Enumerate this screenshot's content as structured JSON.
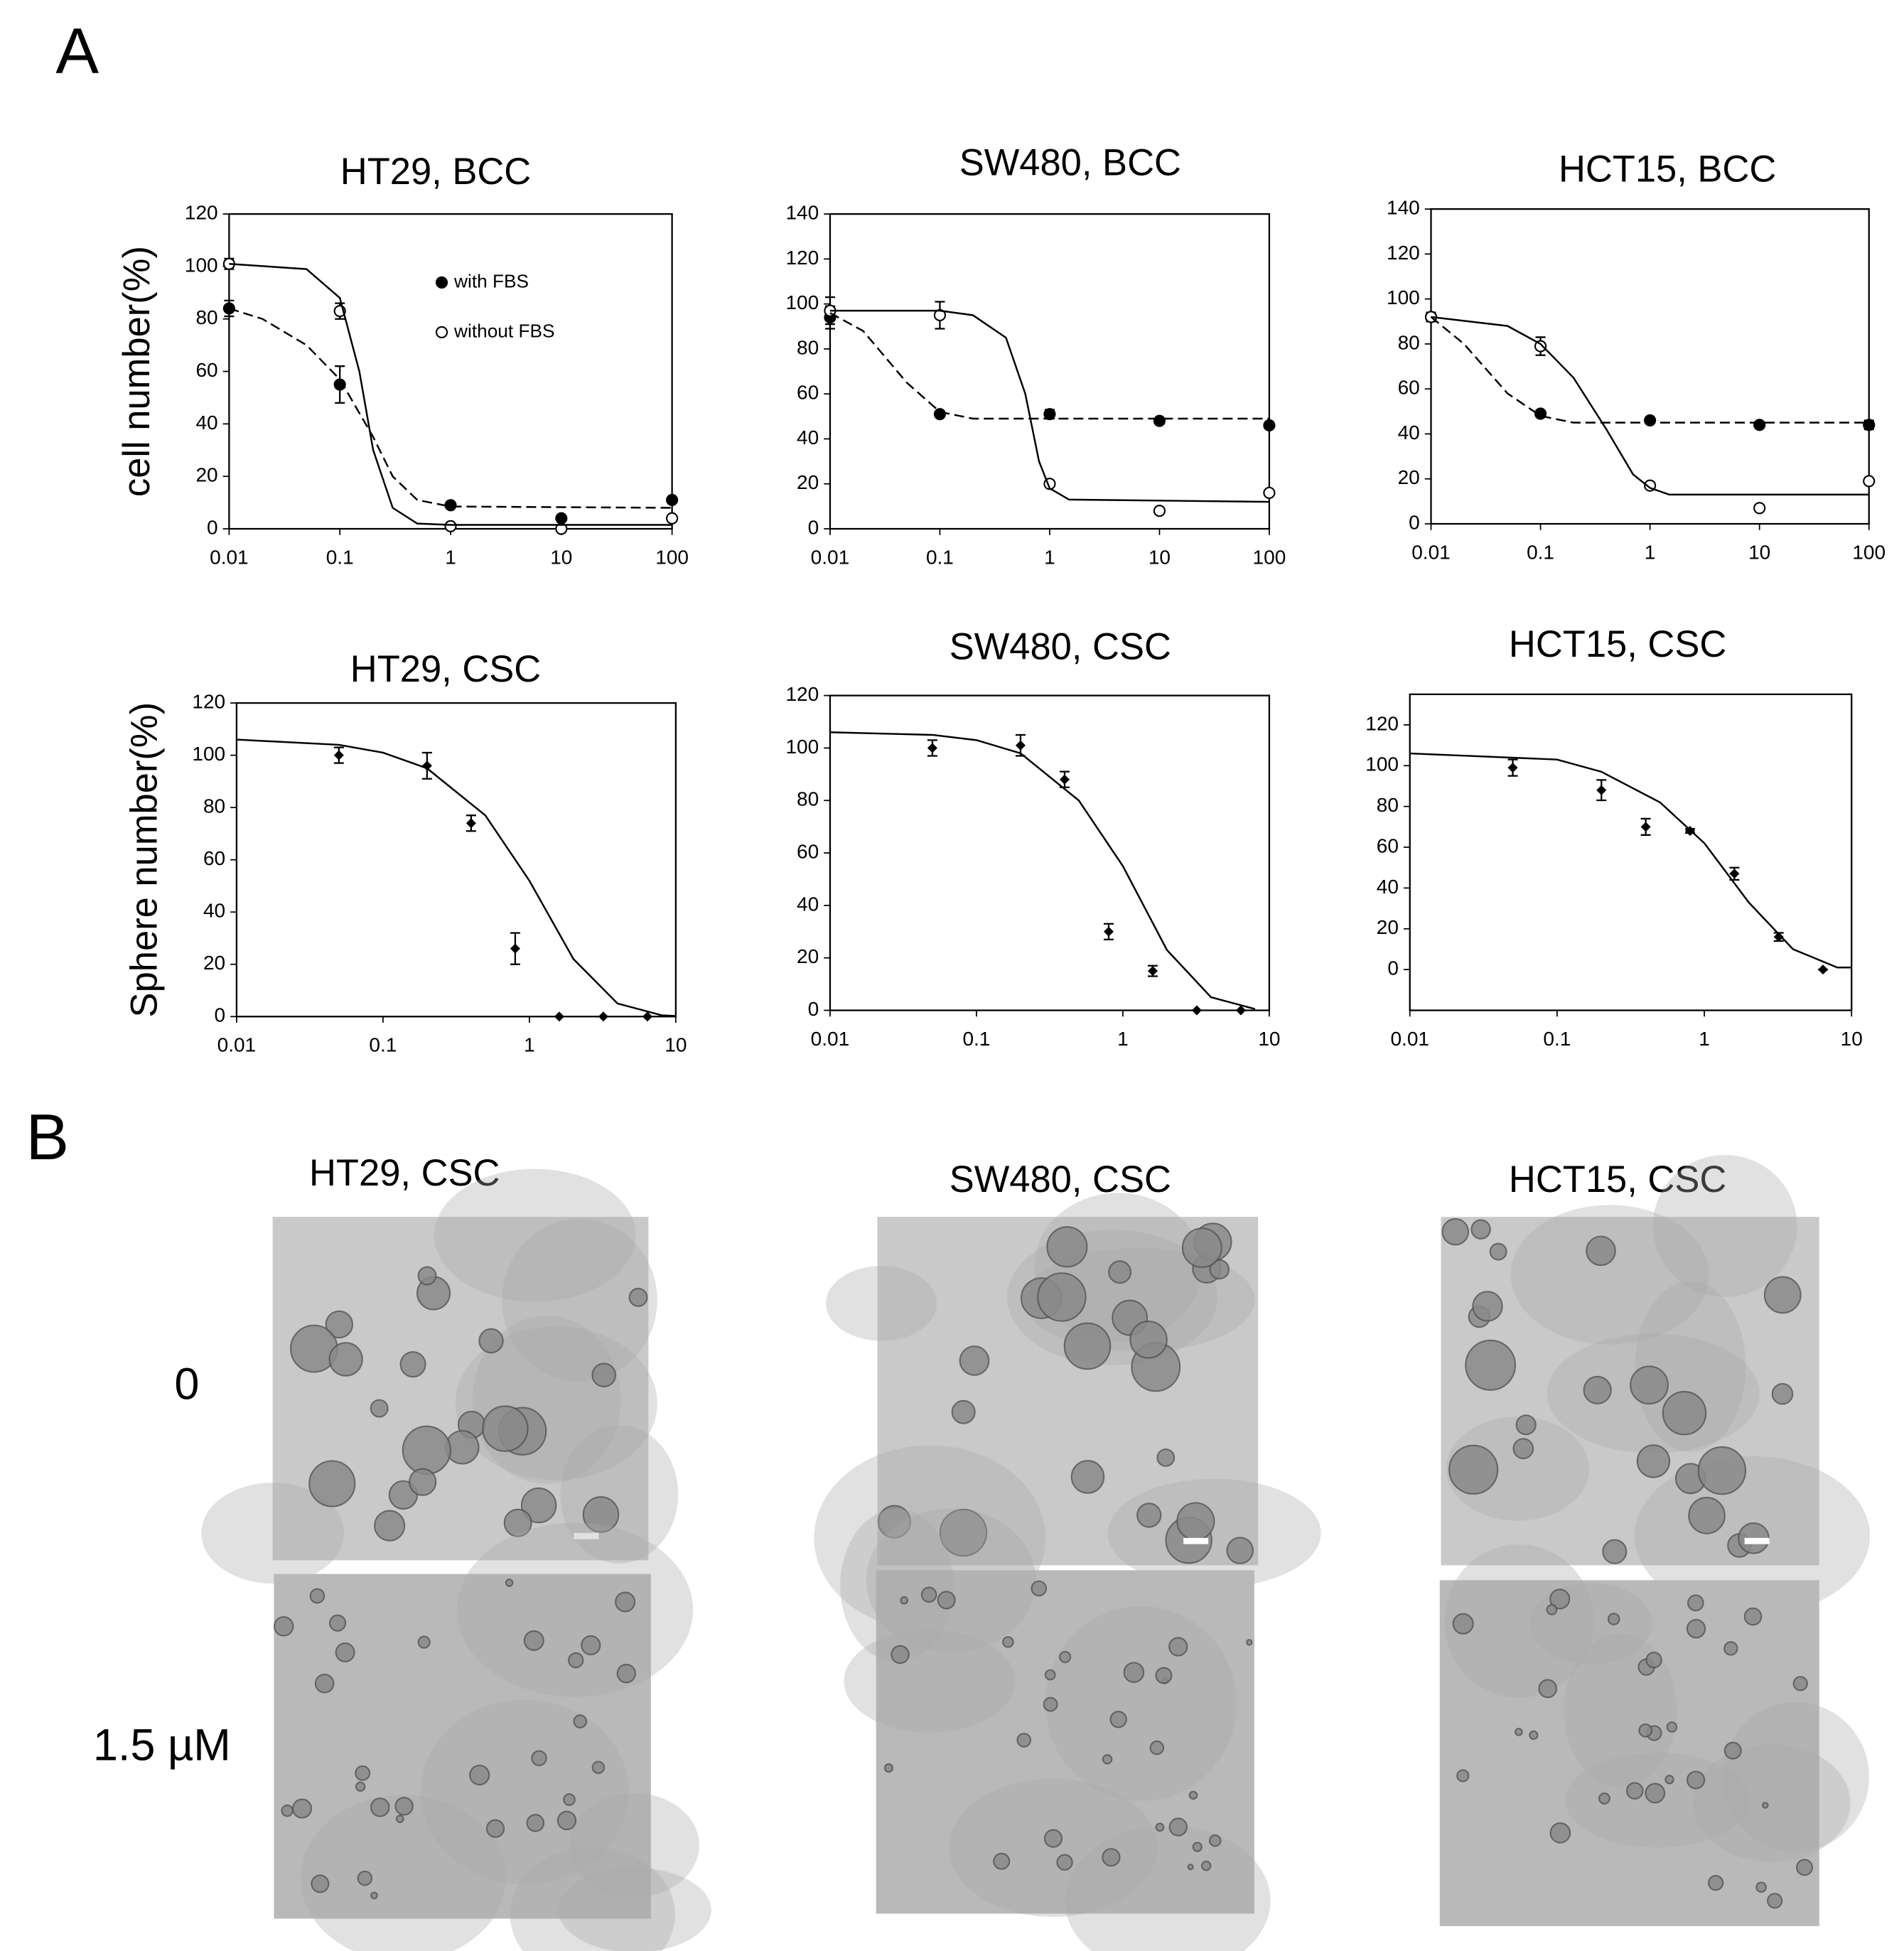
{
  "panel_labels": [
    "A",
    "B"
  ],
  "chart_data": [
    {
      "type": "scatter",
      "title": "HT29, BCC",
      "y_label": "cell number(%)",
      "xscale": "log",
      "xlim": [
        0.01,
        100
      ],
      "xticks": [
        0.01,
        0.1,
        1,
        10,
        100
      ],
      "ylim": [
        0,
        120
      ],
      "yticks": [
        0,
        20,
        40,
        60,
        80,
        100,
        120
      ],
      "legend": "upper right",
      "series": [
        {
          "name": "with FBS",
          "marker": "filled",
          "color": "#000000",
          "x": [
            0.01,
            0.1,
            1,
            10,
            100
          ],
          "values": [
            84,
            55,
            9,
            4,
            11
          ],
          "errors": [
            3,
            7,
            1,
            1,
            1
          ]
        },
        {
          "name": "without FBS",
          "marker": "open",
          "color": "#000000",
          "x": [
            0.01,
            0.1,
            1,
            10,
            100
          ],
          "values": [
            101,
            83,
            1,
            0,
            4
          ],
          "errors": [
            2,
            3,
            1,
            1,
            1
          ]
        },
        {
          "marker": "line",
          "dash": true,
          "color": "#000000",
          "x": [
            0.01,
            0.02,
            0.05,
            0.1,
            0.2,
            0.3,
            0.5,
            1,
            100
          ],
          "values": [
            84,
            80,
            70,
            57,
            35,
            20,
            11,
            8.5,
            8
          ]
        },
        {
          "marker": "line",
          "dash": false,
          "color": "#000000",
          "x": [
            0.01,
            0.05,
            0.1,
            0.15,
            0.2,
            0.3,
            0.5,
            1,
            100
          ],
          "values": [
            101,
            99,
            88,
            60,
            30,
            8,
            2,
            1.5,
            1.5
          ]
        }
      ]
    },
    {
      "type": "scatter",
      "title": "SW480, BCC",
      "xscale": "log",
      "xlim": [
        0.01,
        100
      ],
      "xticks": [
        0.01,
        0.1,
        1,
        10,
        100
      ],
      "ylim": [
        0,
        140
      ],
      "yticks": [
        0,
        20,
        40,
        60,
        80,
        100,
        120,
        140
      ],
      "series": [
        {
          "marker": "filled",
          "color": "#000000",
          "x": [
            0.01,
            0.1,
            1,
            10,
            100
          ],
          "values": [
            94,
            51,
            51,
            48,
            46
          ],
          "errors": [
            5,
            1,
            2,
            1,
            1
          ]
        },
        {
          "marker": "open",
          "color": "#000000",
          "x": [
            0.01,
            0.1,
            1,
            10,
            100
          ],
          "values": [
            97,
            95,
            20,
            8,
            16
          ],
          "errors": [
            6,
            6,
            1,
            1,
            1
          ]
        },
        {
          "marker": "line",
          "dash": true,
          "color": "#000000",
          "x": [
            0.01,
            0.02,
            0.05,
            0.1,
            0.2,
            1,
            100
          ],
          "values": [
            96,
            88,
            65,
            52,
            49,
            49,
            49
          ]
        },
        {
          "marker": "line",
          "dash": false,
          "color": "#000000",
          "x": [
            0.01,
            0.1,
            0.2,
            0.4,
            0.6,
            0.8,
            1,
            1.5,
            100
          ],
          "values": [
            97,
            97,
            95,
            85,
            60,
            30,
            18,
            13,
            12
          ]
        }
      ]
    },
    {
      "type": "scatter",
      "title": "HCT15, BCC",
      "xscale": "log",
      "xlim": [
        0.01,
        100
      ],
      "xticks": [
        0.01,
        0.1,
        1,
        10,
        100
      ],
      "ylim": [
        0,
        140
      ],
      "yticks": [
        0,
        20,
        40,
        60,
        80,
        100,
        120,
        140
      ],
      "series": [
        {
          "marker": "filled",
          "color": "#000000",
          "x": [
            0.01,
            0.1,
            1,
            10,
            100
          ],
          "values": [
            92,
            49,
            46,
            44,
            44
          ],
          "errors": [
            2,
            1,
            1,
            1,
            2
          ]
        },
        {
          "marker": "open",
          "color": "#000000",
          "x": [
            0.01,
            0.1,
            1,
            10,
            100
          ],
          "values": [
            92,
            79,
            17,
            7,
            19
          ],
          "errors": [
            2,
            4,
            1,
            1,
            1
          ]
        },
        {
          "marker": "line",
          "dash": true,
          "color": "#000000",
          "x": [
            0.01,
            0.02,
            0.05,
            0.1,
            0.2,
            100
          ],
          "values": [
            92,
            80,
            58,
            48,
            45,
            45
          ]
        },
        {
          "marker": "line",
          "dash": false,
          "color": "#000000",
          "x": [
            0.01,
            0.05,
            0.1,
            0.2,
            0.4,
            0.7,
            1,
            1.5,
            100
          ],
          "values": [
            92,
            88,
            80,
            65,
            42,
            22,
            16,
            13,
            13
          ]
        }
      ]
    },
    {
      "type": "scatter",
      "title": "HT29, CSC",
      "y_label": "Sphere number(%)",
      "xscale": "log",
      "xlim": [
        0.01,
        10
      ],
      "xticks": [
        0.01,
        0.1,
        1,
        10
      ],
      "ylim": [
        0,
        120
      ],
      "yticks": [
        0,
        20,
        40,
        60,
        80,
        100,
        120
      ],
      "series": [
        {
          "marker": "diamond",
          "color": "#000000",
          "x": [
            0.05,
            0.2,
            0.4,
            0.8,
            1.6,
            3.2,
            6.4
          ],
          "values": [
            100,
            96,
            74,
            26,
            0,
            0,
            0
          ],
          "errors": [
            3,
            5,
            3,
            6,
            0,
            0,
            0
          ]
        },
        {
          "marker": "line",
          "dash": false,
          "color": "#000000",
          "x": [
            0.01,
            0.05,
            0.1,
            0.2,
            0.5,
            1,
            2,
            4,
            8,
            10
          ],
          "values": [
            106,
            104,
            101,
            95,
            77,
            52,
            22,
            5,
            0.5,
            0.2
          ]
        }
      ]
    },
    {
      "type": "scatter",
      "title": "SW480, CSC",
      "xscale": "log",
      "xlim": [
        0.01,
        10
      ],
      "xticks": [
        0.01,
        0.1,
        1,
        10
      ],
      "ylim": [
        0,
        120
      ],
      "yticks": [
        0,
        20,
        40,
        60,
        80,
        100,
        120
      ],
      "series": [
        {
          "marker": "diamond",
          "color": "#000000",
          "x": [
            0.05,
            0.2,
            0.4,
            0.8,
            1.6,
            3.2,
            6.4
          ],
          "values": [
            100,
            101,
            88,
            30,
            15,
            0,
            0
          ],
          "errors": [
            3,
            4,
            3,
            3,
            2,
            0,
            0
          ]
        },
        {
          "marker": "line",
          "dash": false,
          "color": "#000000",
          "x": [
            0.01,
            0.05,
            0.1,
            0.2,
            0.5,
            1,
            2,
            4,
            8
          ],
          "values": [
            106,
            105,
            103,
            98,
            80,
            55,
            23,
            5,
            0.5
          ]
        }
      ]
    },
    {
      "type": "scatter",
      "title": "HCT15, CSC",
      "xscale": "log",
      "xlim": [
        0.01,
        10
      ],
      "xticks": [
        0.01,
        0.1,
        1,
        10
      ],
      "ylim": [
        -20,
        135
      ],
      "yticks": [
        0,
        20,
        40,
        60,
        80,
        100,
        120
      ],
      "series": [
        {
          "marker": "diamond",
          "color": "#000000",
          "x": [
            0.05,
            0.2,
            0.4,
            0.8,
            1.6,
            3.2,
            6.4
          ],
          "values": [
            99,
            88,
            70,
            68,
            47,
            16,
            0
          ],
          "errors": [
            4,
            5,
            4,
            1,
            3,
            2,
            0
          ]
        },
        {
          "marker": "line",
          "dash": false,
          "color": "#000000",
          "x": [
            0.01,
            0.1,
            0.2,
            0.5,
            1,
            2,
            4,
            8,
            10
          ],
          "values": [
            106,
            103,
            97,
            82,
            62,
            33,
            10,
            1,
            1
          ]
        }
      ]
    }
  ],
  "panel_b": {
    "columns": [
      "HT29, CSC",
      "SW480, CSC",
      "HCT15, CSC"
    ],
    "rows": [
      "0",
      "1.5 µM"
    ]
  }
}
